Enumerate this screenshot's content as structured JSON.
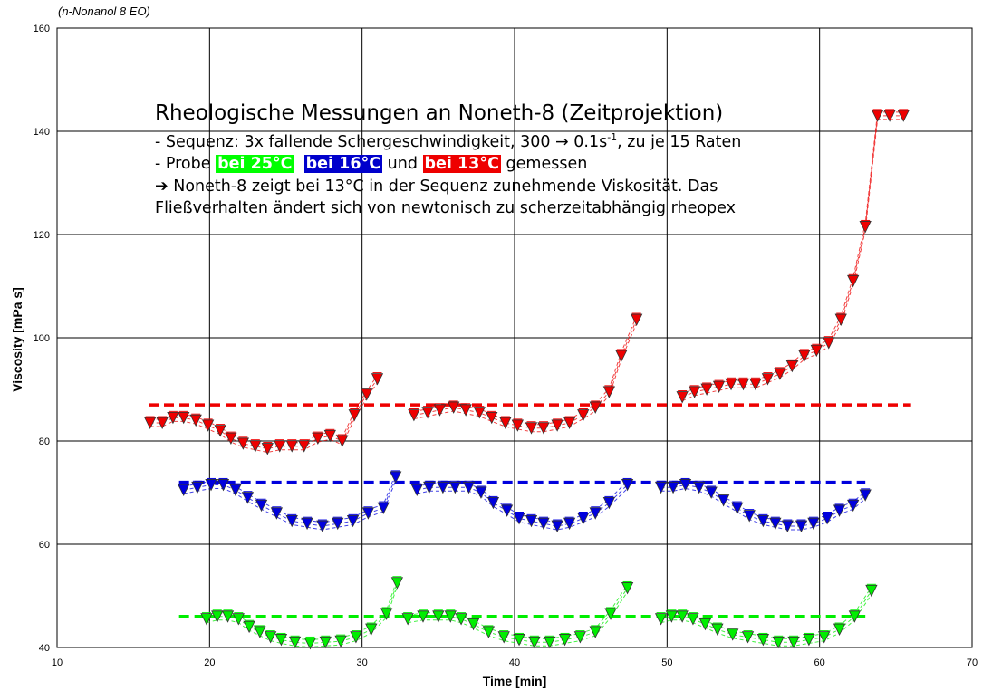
{
  "chart_data": {
    "type": "scatter",
    "title": "",
    "xlabel": "Time [min]",
    "ylabel": "Viscosity  [mPa s]",
    "xlim": [
      10,
      70
    ],
    "ylim": [
      40,
      160
    ],
    "xticks": [
      10,
      20,
      30,
      40,
      50,
      60,
      70
    ],
    "yticks": [
      40,
      60,
      80,
      100,
      120,
      140,
      160
    ],
    "grid": true,
    "legend": "none",
    "colors": {
      "green": "#00ee00",
      "blue": "#0000dd",
      "red": "#ee0000"
    },
    "series": [
      {
        "color": "#00ee00",
        "reference_line": {
          "x": [
            18,
            63
          ],
          "y": 46
        },
        "segments": [
          {
            "x": [
              19.8,
              20.5,
              21.2,
              21.9,
              22.6,
              23.3,
              24.0,
              24.7,
              25.6,
              26.6,
              27.6,
              28.6,
              29.6,
              30.6,
              31.6,
              32.3
            ],
            "y": [
              45.5,
              46.0,
              46.0,
              45.5,
              44.0,
              43.0,
              42.0,
              41.5,
              41.0,
              40.8,
              41.0,
              41.2,
              42.0,
              43.5,
              46.5,
              52.5
            ]
          },
          {
            "x": [
              33.0,
              34.0,
              35.0,
              35.8,
              36.5,
              37.3,
              38.3,
              39.3,
              40.3,
              41.3,
              42.3,
              43.3,
              44.3,
              45.3,
              46.3,
              47.4
            ],
            "y": [
              45.5,
              46.0,
              46.0,
              46.0,
              45.5,
              44.5,
              43.0,
              42.0,
              41.5,
              41.0,
              41.0,
              41.5,
              42.0,
              43.0,
              46.5,
              51.5
            ]
          },
          {
            "x": [
              49.6,
              50.3,
              51.0,
              51.7,
              52.5,
              53.3,
              54.3,
              55.3,
              56.3,
              57.3,
              58.3,
              59.3,
              60.3,
              61.3,
              62.3,
              63.4
            ],
            "y": [
              45.5,
              46.0,
              46.0,
              45.5,
              44.5,
              43.5,
              42.5,
              42.0,
              41.5,
              41.0,
              41.0,
              41.5,
              42.0,
              43.5,
              46.0,
              51.0
            ]
          }
        ]
      },
      {
        "color": "#0000dd",
        "reference_line": {
          "x": [
            18,
            63
          ],
          "y": 72
        },
        "segments": [
          {
            "x": [
              18.3,
              19.2,
              20.1,
              20.9,
              21.7,
              22.5,
              23.4,
              24.4,
              25.4,
              26.4,
              27.4,
              28.4,
              29.4,
              30.4,
              31.4,
              32.2
            ],
            "y": [
              70.5,
              71.0,
              71.5,
              71.5,
              70.5,
              69.0,
              67.5,
              66.0,
              64.5,
              64.0,
              63.5,
              64.0,
              64.5,
              66.0,
              67.0,
              73.0
            ]
          },
          {
            "x": [
              33.6,
              34.4,
              35.3,
              36.1,
              37.0,
              37.8,
              38.6,
              39.5,
              40.3,
              41.1,
              41.9,
              42.8,
              43.6,
              44.5,
              45.3,
              46.2,
              47.4
            ],
            "y": [
              70.5,
              71.0,
              71.0,
              71.0,
              71.0,
              70.0,
              68.0,
              66.5,
              65.0,
              64.5,
              64.0,
              63.5,
              64.0,
              65.0,
              66.0,
              68.0,
              71.5
            ]
          },
          {
            "x": [
              49.6,
              50.4,
              51.2,
              52.1,
              52.9,
              53.7,
              54.6,
              55.4,
              56.3,
              57.1,
              57.9,
              58.8,
              59.6,
              60.5,
              61.3,
              62.2,
              63.0
            ],
            "y": [
              71.0,
              71.0,
              71.5,
              71.0,
              70.0,
              68.5,
              67.0,
              65.5,
              64.5,
              64.0,
              63.5,
              63.5,
              64.0,
              65.0,
              66.5,
              67.5,
              69.5
            ]
          }
        ]
      },
      {
        "color": "#ee0000",
        "reference_line": {
          "x": [
            16,
            66
          ],
          "y": 87
        },
        "segments": [
          {
            "x": [
              16.1,
              16.9,
              17.6,
              18.3,
              19.1,
              19.9,
              20.7,
              21.4,
              22.2,
              23.0,
              23.8,
              24.6,
              25.4,
              26.2,
              27.1,
              27.9,
              28.7,
              29.5,
              30.3,
              31.0
            ],
            "y": [
              83.5,
              83.5,
              84.5,
              84.5,
              84.0,
              83.0,
              82.0,
              80.5,
              79.5,
              79.0,
              78.5,
              79.0,
              79.0,
              79.0,
              80.5,
              81.0,
              80.0,
              85.0,
              89.0,
              92.0
            ]
          },
          {
            "x": [
              33.4,
              34.3,
              35.1,
              36.0,
              36.8,
              37.7,
              38.5,
              39.4,
              40.2,
              41.1,
              41.9,
              42.8,
              43.6,
              44.5,
              45.3,
              46.2,
              47.0,
              48.0
            ],
            "y": [
              85.0,
              85.5,
              86.0,
              86.5,
              86.0,
              85.5,
              84.5,
              83.5,
              83.0,
              82.5,
              82.5,
              83.0,
              83.5,
              85.0,
              86.5,
              89.5,
              96.5,
              103.5
            ]
          },
          {
            "x": [
              51.0,
              51.8,
              52.6,
              53.4,
              54.2,
              55.0,
              55.8,
              56.6,
              57.4,
              58.2,
              59.0,
              59.8,
              60.6,
              61.4,
              62.2,
              63.0,
              63.8,
              64.6,
              65.5
            ],
            "y": [
              88.5,
              89.5,
              90.0,
              90.5,
              91.0,
              91.0,
              91.0,
              92.0,
              93.0,
              94.5,
              96.5,
              97.5,
              99.0,
              103.5,
              111.0,
              121.5,
              143.0,
              143.0,
              143.0
            ]
          }
        ]
      }
    ]
  },
  "corner_label": "(n-Nonanol 8 EO)",
  "annotation": {
    "title": "Rheologische Messungen an Noneth-8 (Zeitprojektion)",
    "line1": "- Sequenz: 3x fallende Schergeschwindigkeit, 300 → 0.1s",
    "line1_sup": "-1",
    "line1_end": ", zu je 15 Raten",
    "line2_a": "- Probe ",
    "tag_green": "bei 25°C",
    "tag_blue": "bei 16°C",
    "line2_b": " und ",
    "tag_red": "bei 13°C",
    "line2_c": " gemessen",
    "line3": "➔  Noneth-8 zeigt bei 13°C in der Sequenz zunehmende Viskosität. Das",
    "line4": "Fließverhalten ändert sich von newtonisch zu scherzeitabhängig rheopex"
  }
}
